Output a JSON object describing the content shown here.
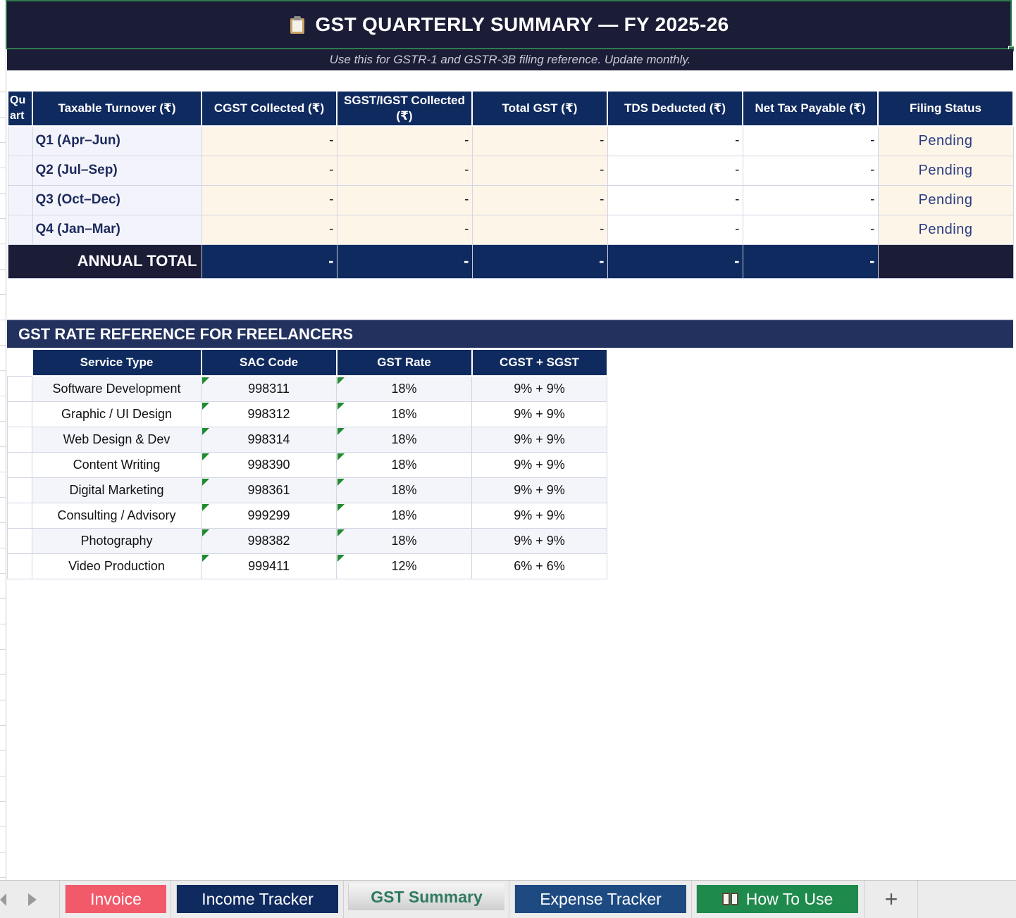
{
  "header": {
    "title": "GST QUARTERLY SUMMARY  —  FY 2025-26",
    "subtitle": "Use this for GSTR-1 and GSTR-3B filing reference. Update monthly."
  },
  "quarterly": {
    "columns": [
      "Qu art",
      "Taxable Turnover (₹)",
      "CGST Collected (₹)",
      "SGST/IGST Collected (₹)",
      "Total GST (₹)",
      "TDS Deducted (₹)",
      "Net Tax Payable (₹)",
      "Filing Status"
    ],
    "rows": [
      {
        "quarter": "Q1 (Apr–Jun)",
        "cgst": "-",
        "sgst": "-",
        "total": "-",
        "tds": "-",
        "net": "-",
        "status": "Pending"
      },
      {
        "quarter": "Q2 (Jul–Sep)",
        "cgst": "-",
        "sgst": "-",
        "total": "-",
        "tds": "-",
        "net": "-",
        "status": "Pending"
      },
      {
        "quarter": "Q3 (Oct–Dec)",
        "cgst": "-",
        "sgst": "-",
        "total": "-",
        "tds": "-",
        "net": "-",
        "status": "Pending"
      },
      {
        "quarter": "Q4 (Jan–Mar)",
        "cgst": "-",
        "sgst": "-",
        "total": "-",
        "tds": "-",
        "net": "-",
        "status": "Pending"
      }
    ],
    "total": {
      "label": "ANNUAL TOTAL",
      "cgst": "-",
      "sgst": "-",
      "total": "-",
      "tds": "-",
      "net": "-"
    }
  },
  "rates": {
    "section_title": "GST RATE REFERENCE FOR FREELANCERS",
    "columns": [
      "Service Type",
      "SAC Code",
      "GST Rate",
      "CGST + SGST"
    ],
    "rows": [
      {
        "service": "Software Development",
        "sac": "998311",
        "rate": "18%",
        "split": "9% + 9%"
      },
      {
        "service": "Graphic / UI Design",
        "sac": "998312",
        "rate": "18%",
        "split": "9% + 9%"
      },
      {
        "service": "Web Design & Dev",
        "sac": "998314",
        "rate": "18%",
        "split": "9% + 9%"
      },
      {
        "service": "Content Writing",
        "sac": "998390",
        "rate": "18%",
        "split": "9% + 9%"
      },
      {
        "service": "Digital Marketing",
        "sac": "998361",
        "rate": "18%",
        "split": "9% + 9%"
      },
      {
        "service": "Consulting / Advisory",
        "sac": "999299",
        "rate": "18%",
        "split": "9% + 9%"
      },
      {
        "service": "Photography",
        "sac": "998382",
        "rate": "18%",
        "split": "9% + 9%"
      },
      {
        "service": "Video Production",
        "sac": "999411",
        "rate": "12%",
        "split": "6% + 6%"
      }
    ]
  },
  "tabs": {
    "invoice": "Invoice",
    "income": "Income Tracker",
    "gst": "GST Summary",
    "expense": "Expense Tracker",
    "howto": "How To Use",
    "add": "+"
  },
  "colors": {
    "title_bg": "#1b1c36",
    "header_blue": "#0f2a5e",
    "tab_invoice": "#f25a6a",
    "tab_income": "#0f2a5e",
    "tab_expense": "#1d4a80",
    "tab_howto": "#1e8a4c"
  },
  "icons": {
    "title": "clipboard-icon",
    "howto": "open-book-icon"
  }
}
